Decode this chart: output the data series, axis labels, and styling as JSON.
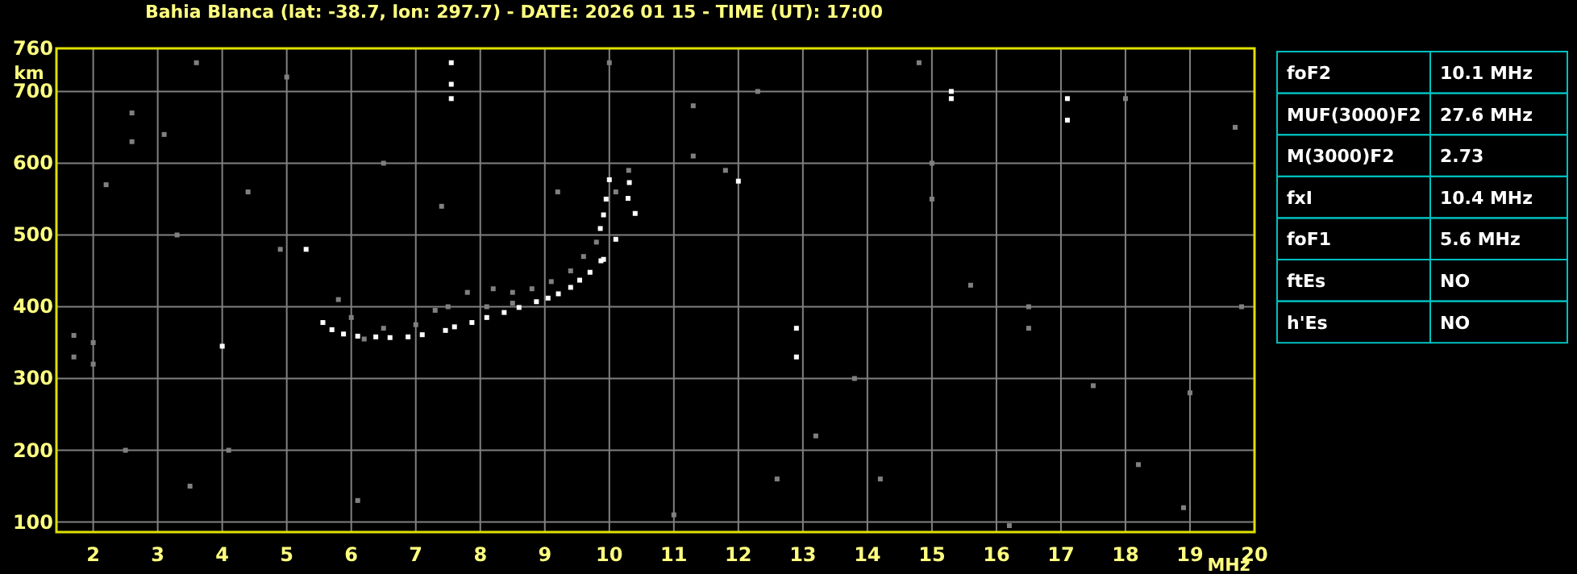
{
  "chart_data": {
    "type": "scatter",
    "title": "Bahia Blanca (lat: -38.7, lon: 297.7) - DATE: 2026 01 15 - TIME (UT): 17:00",
    "xlabel": "MHz",
    "ylabel": "km",
    "xlim": [
      1.43,
      20
    ],
    "ylim": [
      86,
      760
    ],
    "xticks": [
      2,
      3,
      4,
      5,
      6,
      7,
      8,
      9,
      10,
      11,
      12,
      13,
      14,
      15,
      16,
      17,
      18,
      19,
      20
    ],
    "yticks": [
      100,
      200,
      300,
      400,
      500,
      600,
      700,
      760
    ],
    "grid": true,
    "marker": "square",
    "series": [
      {
        "color": "#ffffff",
        "x": [
          5.56,
          5.7,
          5.88,
          6.1,
          6.38,
          6.6,
          6.88,
          7.1,
          7.46,
          7.6,
          7.87,
          8.1,
          8.37,
          8.6,
          8.87,
          9.05,
          9.21,
          9.4,
          9.54,
          9.7,
          9.87,
          9.91,
          9.86,
          9.91,
          9.95,
          10.0,
          10.1,
          10.29,
          10.31,
          10.4,
          7.55,
          7.55,
          7.55,
          15.3,
          15.3,
          17.1,
          17.1,
          12.9,
          12.9,
          12.0,
          4.0,
          5.3
        ],
        "values": [
          378,
          368,
          362,
          359,
          358,
          357,
          358,
          361,
          367,
          372,
          378,
          385,
          392,
          399,
          407,
          412,
          418,
          427,
          437,
          448,
          464,
          466,
          509,
          528,
          550,
          577,
          494,
          551,
          573,
          530,
          690,
          710,
          740,
          690,
          700,
          660,
          690,
          330,
          370,
          575,
          345,
          480
        ]
      },
      {
        "color": "#808080",
        "x": [
          5.8,
          6.0,
          6.2,
          6.5,
          7.0,
          7.3,
          7.5,
          7.8,
          8.1,
          8.2,
          8.5,
          8.5,
          8.8,
          9.1,
          9.4,
          9.6,
          9.8,
          10.1,
          10.3,
          1.7,
          1.7,
          2.0,
          2.0,
          2.6,
          2.6,
          3.1,
          4.9,
          3.6,
          5.0,
          11.3,
          11.3,
          11.8,
          15.0,
          15.0,
          16.5,
          16.5,
          18.0,
          19.7,
          19.8,
          13.2,
          14.2,
          16.2,
          11.0,
          3.5,
          2.5,
          4.1,
          6.1,
          9.2,
          13.8,
          17.5,
          19.0,
          18.9,
          14.8,
          12.3,
          10.0,
          2.2,
          3.3,
          7.4,
          6.5,
          4.4,
          15.6,
          18.2,
          12.6
        ],
        "values": [
          410,
          385,
          355,
          370,
          375,
          395,
          400,
          420,
          400,
          425,
          405,
          420,
          425,
          435,
          450,
          470,
          490,
          560,
          590,
          330,
          360,
          350,
          320,
          630,
          670,
          640,
          480,
          740,
          720,
          610,
          680,
          590,
          600,
          550,
          400,
          370,
          690,
          650,
          400,
          220,
          160,
          95,
          110,
          150,
          200,
          200,
          130,
          560,
          300,
          290,
          280,
          120,
          740,
          700,
          740,
          570,
          500,
          540,
          600,
          560,
          430,
          180,
          160
        ]
      }
    ],
    "annotations": [
      "foF2",
      "10.1 MHz",
      "MUF(3000)F2",
      "27.6 MHz",
      "M(3000)F2",
      "2.73",
      "fxI",
      "10.4 MHz",
      "foF1",
      "5.6 MHz",
      "ftEs",
      "NO",
      "h'Es",
      "NO"
    ]
  }
}
